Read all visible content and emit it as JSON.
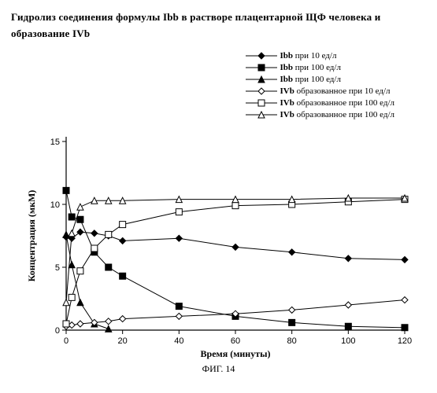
{
  "title_line1": "Гидролиз соединения формулы Ibb в растворе плацентарной ЩФ человека и",
  "title_line2": "образование IVb",
  "caption": "ФИГ. 14",
  "axes": {
    "xlabel": "Время (минуты)",
    "ylabel": "Концентрация (мкМ)",
    "xlim": [
      0,
      120
    ],
    "xtick_step": 20,
    "ylim": [
      0,
      15
    ],
    "ytick_step": 5,
    "axis_color": "#000000",
    "plot_bg": "#ffffff",
    "tick_fontsize": 11,
    "label_fontsize": 12
  },
  "legend": {
    "items": [
      {
        "symbol": "Ibb",
        "marker": "diamond",
        "filled": true,
        "text": " при 10 ед/л"
      },
      {
        "symbol": "Ibb",
        "marker": "square",
        "filled": true,
        "text": " при 100 ед/л"
      },
      {
        "symbol": "Ibb",
        "marker": "triangle",
        "filled": true,
        "text": " при 100 ед/л"
      },
      {
        "symbol": "IVb",
        "marker": "diamond",
        "filled": false,
        "text": " образованное при 10 ед/л"
      },
      {
        "symbol": "IVb",
        "marker": "square",
        "filled": false,
        "text": " образованное при 100 ед/л"
      },
      {
        "symbol": "IVb",
        "marker": "triangle",
        "filled": false,
        "text": " образованное при 100 ед/л"
      }
    ]
  },
  "series": [
    {
      "name": "Ibb-10",
      "marker": "diamond",
      "filled": true,
      "x": [
        0,
        2,
        5,
        10,
        15,
        20,
        40,
        60,
        80,
        100,
        120
      ],
      "y": [
        7.4,
        7.3,
        7.8,
        7.7,
        7.5,
        7.1,
        7.3,
        6.6,
        6.2,
        5.7,
        5.6
      ]
    },
    {
      "name": "Ibb-100a",
      "marker": "square",
      "filled": true,
      "x": [
        0,
        2,
        5,
        10,
        15,
        20,
        40,
        60,
        80,
        100,
        120
      ],
      "y": [
        11.1,
        9.0,
        8.8,
        6.2,
        5.0,
        4.3,
        1.9,
        1.1,
        0.6,
        0.3,
        0.2
      ]
    },
    {
      "name": "Ibb-100b",
      "marker": "triangle",
      "filled": true,
      "x": [
        0,
        2,
        5,
        10,
        15
      ],
      "y": [
        7.6,
        5.2,
        2.2,
        0.5,
        0.1
      ]
    },
    {
      "name": "IVb-10",
      "marker": "diamond",
      "filled": false,
      "x": [
        0,
        2,
        5,
        10,
        15,
        20,
        40,
        60,
        80,
        100,
        120
      ],
      "y": [
        0.3,
        0.4,
        0.5,
        0.6,
        0.7,
        0.9,
        1.1,
        1.3,
        1.6,
        2.0,
        2.4
      ]
    },
    {
      "name": "IVb-100a",
      "marker": "square",
      "filled": false,
      "x": [
        0,
        2,
        5,
        10,
        15,
        20,
        40,
        60,
        80,
        100,
        120
      ],
      "y": [
        0.5,
        2.6,
        4.7,
        6.5,
        7.6,
        8.4,
        9.4,
        9.9,
        10.0,
        10.2,
        10.4
      ]
    },
    {
      "name": "IVb-100b",
      "marker": "triangle",
      "filled": false,
      "x": [
        0,
        2,
        5,
        10,
        15,
        20,
        40,
        60,
        80,
        100,
        120
      ],
      "y": [
        2.2,
        7.7,
        9.8,
        10.3,
        10.3,
        10.3,
        10.4,
        10.4,
        10.4,
        10.5,
        10.5
      ]
    }
  ],
  "style": {
    "line_color": "#000000",
    "marker_size": 8,
    "line_width": 1
  }
}
